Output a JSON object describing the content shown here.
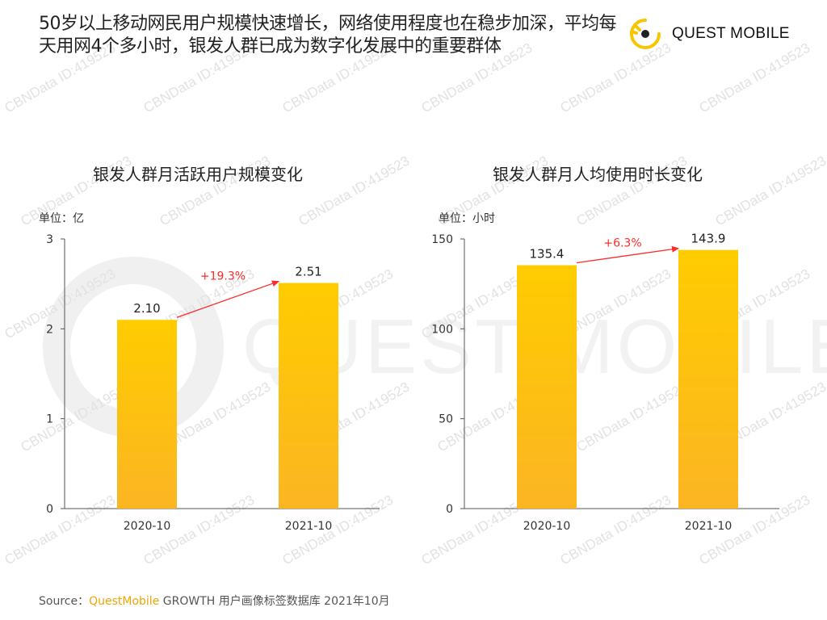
{
  "headline": "50岁以上移动网民用户规模快速增长，网络使用程度也在稳步加深，平均每天用网4个多小时，银发人群已成为数字化发展中的重要群体",
  "logo": {
    "text": "QUEST MOBILE",
    "icon": "quest-mobile-logo-icon"
  },
  "watermark": {
    "text": "CBNData ID:419523",
    "big_text": "QUEST MOBILE"
  },
  "source": {
    "prefix": "Source：",
    "brand": "QuestMobile",
    "rest": " GROWTH 用户画像标签数据库 2021年10月"
  },
  "colors": {
    "bar_top": "#ffcc00",
    "bar_bottom": "#fbb523",
    "arrow": "#ff2a2a",
    "axis": "#555555",
    "logo_accent": "#f7c600"
  },
  "chart_data": [
    {
      "type": "bar",
      "title": "银发人群月活跃用户规模变化",
      "unit_label": "单位：亿",
      "categories": [
        "2020-10",
        "2021-10"
      ],
      "values": [
        2.1,
        2.51
      ],
      "value_labels": [
        "2.10",
        "2.51"
      ],
      "ylim": [
        0,
        3
      ],
      "yticks": [
        0,
        1,
        2,
        3
      ],
      "growth_label": "+19.3%"
    },
    {
      "type": "bar",
      "title": "银发人群月人均使用时长变化",
      "unit_label": "单位：小时",
      "categories": [
        "2020-10",
        "2021-10"
      ],
      "values": [
        135.4,
        143.9
      ],
      "value_labels": [
        "135.4",
        "143.9"
      ],
      "ylim": [
        0,
        150
      ],
      "yticks": [
        0,
        50,
        100,
        150
      ],
      "growth_label": "+6.3%"
    }
  ]
}
